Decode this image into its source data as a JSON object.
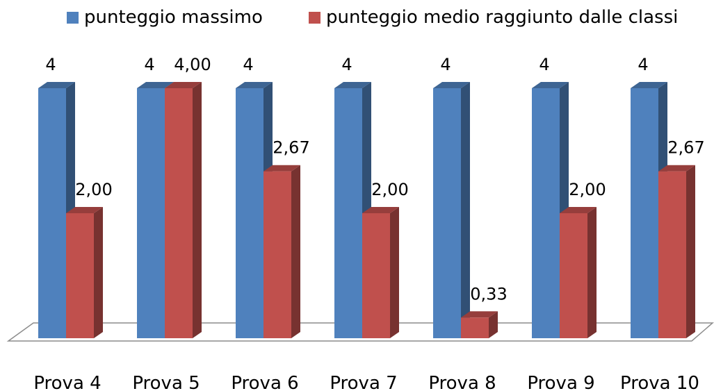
{
  "chart_data": {
    "type": "bar",
    "categories": [
      "Prova 4",
      "Prova 5",
      "Prova 6",
      "Prova 7",
      "Prova 8",
      "Prova 9",
      "Prova 10"
    ],
    "series": [
      {
        "name": "punteggio massimo",
        "values": [
          4,
          4,
          4,
          4,
          4,
          4,
          4
        ],
        "labels": [
          "4",
          "4",
          "4",
          "4",
          "4",
          "4",
          "4"
        ],
        "color": "#4F81BD"
      },
      {
        "name": "punteggio medio raggiunto dalle classi",
        "values": [
          2.0,
          4.0,
          2.67,
          2.0,
          0.33,
          2.0,
          2.67
        ],
        "labels": [
          "2,00",
          "4,00",
          "2,67",
          "2,00",
          "0,33",
          "2,00",
          "2,67"
        ],
        "color": "#C0504D"
      }
    ],
    "ylim": [
      0,
      4
    ],
    "grid": false,
    "legend": "top",
    "style": "3d-column"
  }
}
